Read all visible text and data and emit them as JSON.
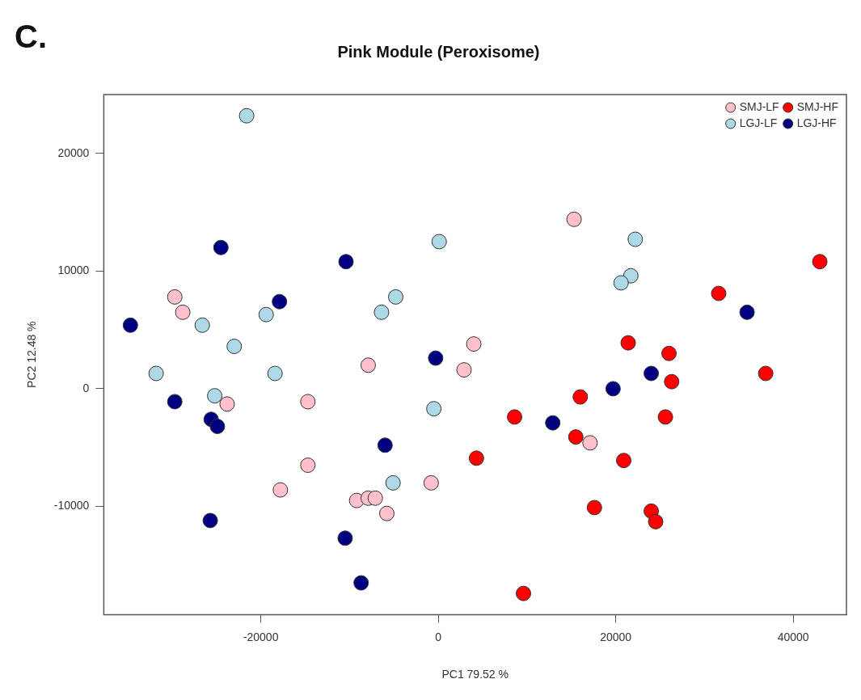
{
  "chart_data": {
    "type": "scatter",
    "title": "Pink Module (Peroxisome)",
    "xlabel": "PC1 79.52 %",
    "ylabel": "PC2 12.48 %",
    "annotations": [
      "C."
    ],
    "xlim": [
      -37700,
      46000
    ],
    "ylim": [
      -19200,
      25000
    ],
    "xticks": [
      -20000,
      0,
      20000,
      40000
    ],
    "yticks": [
      -10000,
      0,
      10000,
      20000
    ],
    "grid": false,
    "legend": "top right",
    "marker": "circle",
    "series": [
      {
        "name": "SMJ-LF",
        "color": "#ffc0cb",
        "x": [
          -29700,
          -28800,
          -7900,
          2900,
          4000,
          15300,
          -23800,
          -14700,
          -14700,
          -17800,
          -9200,
          -7900,
          -7100,
          -5800,
          -800,
          17100
        ],
        "values": [
          7800,
          6500,
          2000,
          1600,
          3800,
          14400,
          -1300,
          -1100,
          -6500,
          -8600,
          -9500,
          -9300,
          -9300,
          -10600,
          -8000,
          -4600
        ]
      },
      {
        "name": "LGJ-LF",
        "color": "#add8e6",
        "x": [
          -21600,
          100,
          -4800,
          -6400,
          -19400,
          -26600,
          -23000,
          -31800,
          -18400,
          -25200,
          -500,
          -5100,
          22200,
          21700,
          20600
        ],
        "values": [
          23200,
          12500,
          7800,
          6500,
          6300,
          5400,
          3600,
          1300,
          1300,
          -600,
          -1700,
          -8000,
          12700,
          9600,
          9000
        ]
      },
      {
        "name": "SMJ-HF",
        "color": "#ff0000",
        "x": [
          43000,
          31600,
          21400,
          26000,
          26300,
          36900,
          16000,
          25600,
          8600,
          15500,
          4300,
          20900,
          17600,
          24000,
          24500,
          9600
        ],
        "values": [
          10800,
          8100,
          3900,
          3000,
          600,
          1300,
          -700,
          -2400,
          -2400,
          -4100,
          -5900,
          -6100,
          -10100,
          -10400,
          -11300,
          -17400
        ]
      },
      {
        "name": "LGJ-HF",
        "color": "#000080",
        "x": [
          -24500,
          -10400,
          -17900,
          -34700,
          -300,
          -29700,
          -25600,
          -24900,
          -6000,
          -25700,
          -10500,
          -8700,
          34800,
          24000,
          19700,
          12900
        ],
        "values": [
          12000,
          10800,
          7400,
          5400,
          2600,
          -1100,
          -2600,
          -3200,
          -4800,
          -11200,
          -12700,
          -16500,
          6500,
          1300,
          0,
          -2900
        ]
      }
    ]
  }
}
